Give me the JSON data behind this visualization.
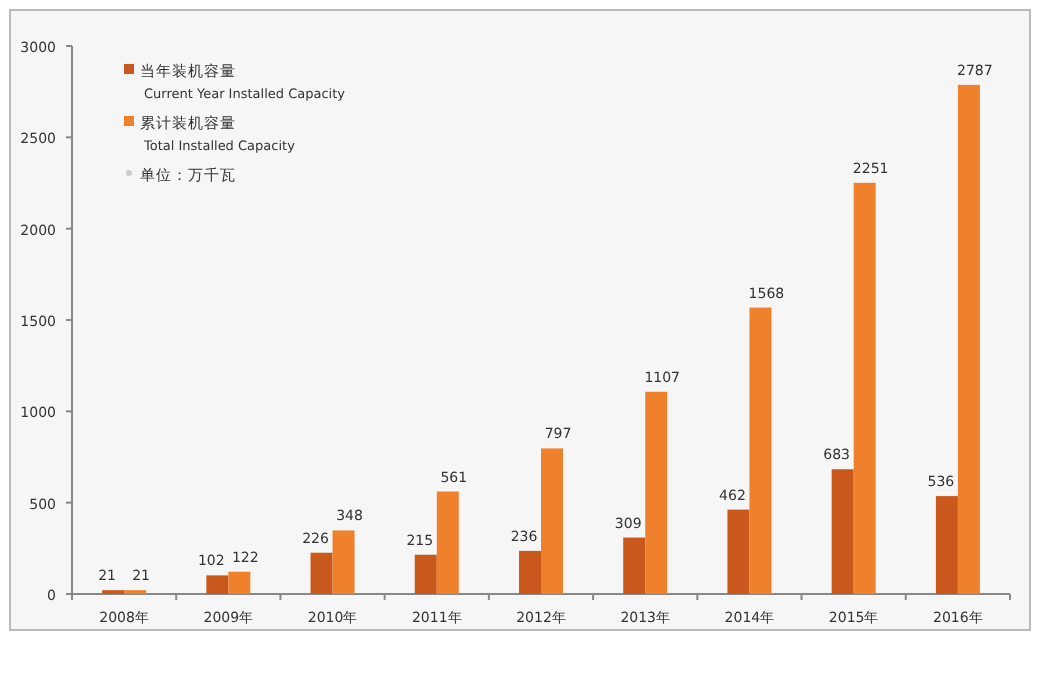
{
  "chart_data": {
    "type": "bar",
    "categories": [
      "2008年",
      "2009年",
      "2010年",
      "2011年",
      "2012年",
      "2013年",
      "2014年",
      "2015年",
      "2016年"
    ],
    "series": [
      {
        "name": "当年装机容量\nCurrent Year Installed Capacity",
        "color": "#c9581c",
        "values": [
          21,
          102,
          226,
          215,
          236,
          309,
          462,
          683,
          536
        ]
      },
      {
        "name": "累计装机容量\nTotal Installed Capacity",
        "color": "#f0812c",
        "values": [
          21,
          122,
          348,
          561,
          797,
          1107,
          1568,
          2251,
          2787
        ]
      }
    ],
    "annotations": [
      "单位：万千瓦"
    ],
    "ylim": [
      0,
      3000
    ],
    "yticks": [
      0,
      500,
      1000,
      1500,
      2000,
      2500,
      3000
    ],
    "data_labels": true,
    "grid": false,
    "legend": "top left"
  }
}
